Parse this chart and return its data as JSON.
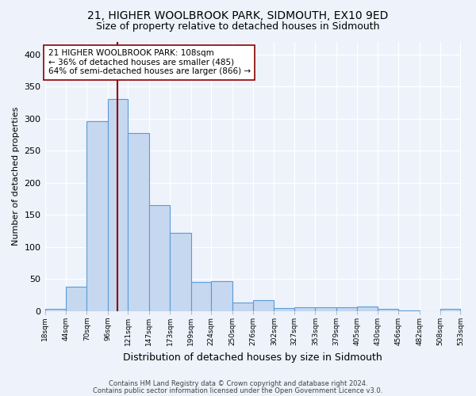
{
  "title1": "21, HIGHER WOOLBROOK PARK, SIDMOUTH, EX10 9ED",
  "title2": "Size of property relative to detached houses in Sidmouth",
  "xlabel": "Distribution of detached houses by size in Sidmouth",
  "ylabel": "Number of detached properties",
  "footer1": "Contains HM Land Registry data © Crown copyright and database right 2024.",
  "footer2": "Contains public sector information licensed under the Open Government Licence v3.0.",
  "bin_labels": [
    "18sqm",
    "44sqm",
    "70sqm",
    "96sqm",
    "121sqm",
    "147sqm",
    "173sqm",
    "199sqm",
    "224sqm",
    "250sqm",
    "276sqm",
    "302sqm",
    "327sqm",
    "353sqm",
    "379sqm",
    "405sqm",
    "430sqm",
    "456sqm",
    "482sqm",
    "508sqm",
    "533sqm"
  ],
  "bar_values": [
    4,
    38,
    296,
    330,
    278,
    165,
    122,
    45,
    47,
    14,
    17,
    5,
    6,
    6,
    6,
    7,
    3,
    1,
    0,
    4,
    0
  ],
  "bar_color": "#c5d8f0",
  "bar_edge_color": "#5b9bd5",
  "vline_x": 108,
  "vline_color": "#8b0000",
  "annotation_text": "21 HIGHER WOOLBROOK PARK: 108sqm\n← 36% of detached houses are smaller (485)\n64% of semi-detached houses are larger (866) →",
  "annotation_box_color": "white",
  "annotation_box_edge": "#8b0000",
  "ylim": [
    0,
    420
  ],
  "yticks": [
    0,
    50,
    100,
    150,
    200,
    250,
    300,
    350,
    400
  ],
  "bin_edges": [
    18,
    44,
    70,
    96,
    121,
    147,
    173,
    199,
    224,
    250,
    276,
    302,
    327,
    353,
    379,
    405,
    430,
    456,
    482,
    508,
    533
  ],
  "background_color": "#edf2fb",
  "plot_bg_color": "#edf2fb",
  "grid_color": "#ffffff",
  "title1_fontsize": 10,
  "title2_fontsize": 9,
  "xlabel_fontsize": 9,
  "ylabel_fontsize": 8,
  "xtick_fontsize": 6.5,
  "ytick_fontsize": 8,
  "footer_fontsize": 6,
  "annot_fontsize": 7.5
}
